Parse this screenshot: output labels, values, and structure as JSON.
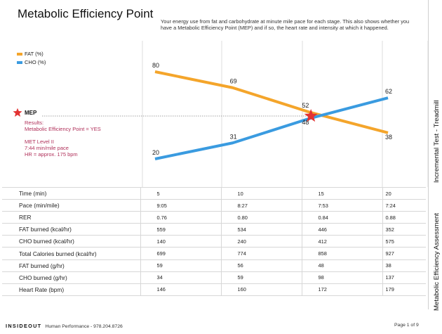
{
  "page": {
    "title": "Metabolic Efficiency Point",
    "intro": "Your energy use from fat and carbohydrate at minute mile pace for each stage. This also shows whether you have a Metabolic Efficiency Point (MEP) and if so, the heart rate and intensity at which it happened."
  },
  "legend": {
    "fat": "FAT (%)",
    "cho": "CHO (%)"
  },
  "mep": {
    "label": "MEP",
    "results": [
      "Results:",
      "Metabolic Efficiency Point = YES",
      "",
      "MET Level II",
      "7:44 min/mile pace",
      "HR = approx. 175 bpm"
    ],
    "star_color": "#e23333"
  },
  "chart_data": {
    "type": "line",
    "categories": [
      5,
      10,
      15,
      20
    ],
    "series": [
      {
        "name": "FAT (%)",
        "values": [
          80,
          69,
          52,
          38
        ],
        "color": "#f4a52b"
      },
      {
        "name": "CHO (%)",
        "values": [
          20,
          31,
          48,
          62
        ],
        "color": "#3a9be0"
      }
    ],
    "data_labels": [
      {
        "series": 0,
        "labels": [
          "80",
          "69",
          "52",
          "38"
        ]
      },
      {
        "series": 1,
        "labels": [
          "20",
          "31",
          "48",
          "62"
        ]
      }
    ],
    "mep_crossover": {
      "x": 15.04,
      "y": 50
    },
    "ylim": [
      20,
      80
    ],
    "grid": "vertical only",
    "legend_placement": "top-left"
  },
  "table": {
    "rows": [
      {
        "label": "Time (min)",
        "values": [
          "5",
          "10",
          "15",
          "20"
        ]
      },
      {
        "label": "Pace (min/mile)",
        "values": [
          "9:05",
          "8:27",
          "7:53",
          "7:24"
        ]
      },
      {
        "label": "RER",
        "values": [
          "0.76",
          "0.80",
          "0.84",
          "0.88"
        ]
      },
      {
        "label": "FAT burned (kcal/hr)",
        "values": [
          "559",
          "534",
          "446",
          "352"
        ]
      },
      {
        "label": "CHO burned (kcal/hr)",
        "values": [
          "140",
          "240",
          "412",
          "575"
        ]
      },
      {
        "label": "Total Calories burned (kcal/hr)",
        "values": [
          "699",
          "774",
          "858",
          "927"
        ]
      },
      {
        "label": "FAT burned (g/hr)",
        "values": [
          "59",
          "56",
          "48",
          "38"
        ]
      },
      {
        "label": "CHO burned (g/hr)",
        "values": [
          "34",
          "59",
          "98",
          "137"
        ]
      },
      {
        "label": "Heart Rate (bpm)",
        "values": [
          "146",
          "160",
          "172",
          "179"
        ]
      }
    ]
  },
  "side": {
    "top": "Incremental Test - Treadmill",
    "bottom": "Metabolic Efficiency Assessment"
  },
  "footer": {
    "brand": "INSIDEOUT",
    "text": "Human Performance - 978.204.8726",
    "page": "Page 1 of 9"
  }
}
